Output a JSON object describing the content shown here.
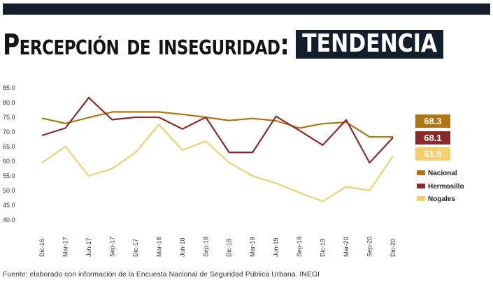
{
  "header": {
    "title": "Percepción de inseguridad:",
    "highlight": "TENDENCIA"
  },
  "footer": {
    "source": "Fuente: elaborado con información de la Encuesta Nacional de Seguridad Pública Urbana. INEGI"
  },
  "colors": {
    "nacional": "#b27514",
    "hermosillo": "#8b2a2a",
    "nogales": "#f5cf6e",
    "dark": "#141d2b"
  },
  "chart_data": {
    "type": "line",
    "title": "",
    "xlabel": "",
    "ylabel": "",
    "ylim": [
      40,
      85
    ],
    "yticks": [
      "85.0",
      "80.0",
      "75.0",
      "70.0",
      "65.0",
      "60.0",
      "55.0",
      "50.0",
      "45.0",
      "40.0"
    ],
    "categories": [
      "Dic-16",
      "Mar-17",
      "Jun-17",
      "Sep-17",
      "Dic-17",
      "Mar-18",
      "Jun-18",
      "Sep-18",
      "Dic-18",
      "Mar-19",
      "Jun-19",
      "Sep-19",
      "Dic-19",
      "Mar-20",
      "Sep-20",
      "Dic-20"
    ],
    "series": [
      {
        "name": "Nacional",
        "color": "#b27514",
        "last_label": "68.3",
        "values": [
          74.7,
          72.9,
          74.9,
          76.8,
          76.8,
          76.8,
          76.0,
          75.0,
          73.9,
          74.6,
          73.8,
          71.3,
          72.8,
          73.3,
          68.3,
          68.3
        ]
      },
      {
        "name": "Hermosillo",
        "color": "#8b2a2a",
        "last_label": "68.1",
        "values": [
          68.8,
          71.3,
          81.7,
          74.2,
          75.0,
          75.0,
          71.0,
          75.0,
          63.0,
          63.0,
          75.3,
          70.5,
          65.5,
          74.1,
          59.5,
          68.1
        ]
      },
      {
        "name": "Nogales",
        "color": "#f5cf6e",
        "last_label": "61.8",
        "values": [
          59.5,
          65.0,
          55.0,
          57.5,
          63.0,
          72.5,
          63.8,
          66.8,
          59.5,
          55.0,
          52.5,
          49.3,
          46.3,
          51.3,
          50.0,
          61.8
        ]
      }
    ],
    "grid": false,
    "legend": "right"
  }
}
